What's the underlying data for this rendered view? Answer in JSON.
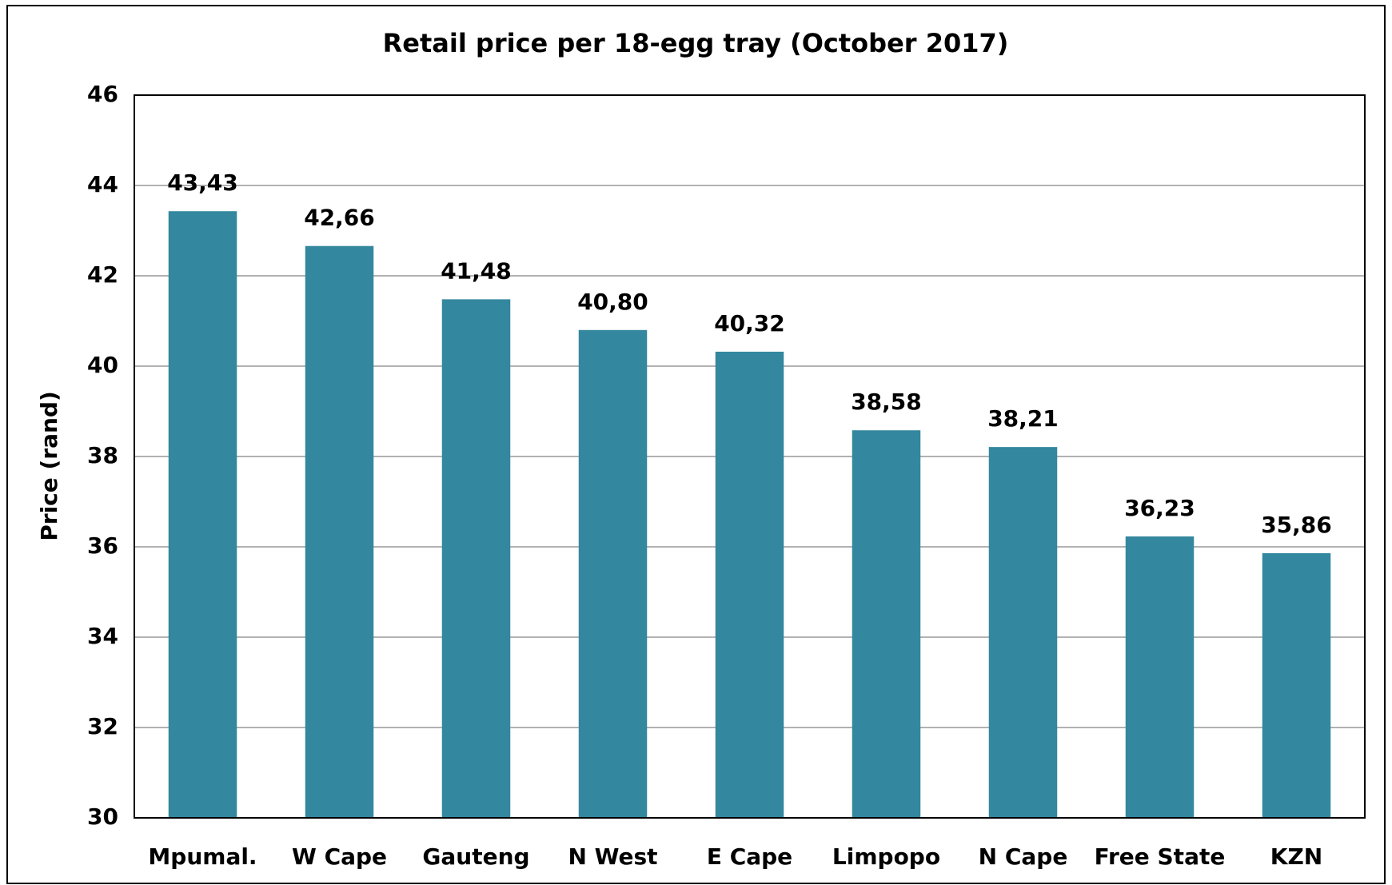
{
  "chart_data": {
    "type": "bar",
    "title": "Retail price per 18-egg tray (October 2017)",
    "y_label": "Price (rand)",
    "categories": [
      "Mpumal.",
      "W Cape",
      "Gauteng",
      "N West",
      "E Cape",
      "Limpopo",
      "N Cape",
      "Free State",
      "KZN"
    ],
    "values": [
      43.43,
      42.66,
      41.48,
      40.8,
      40.32,
      38.58,
      38.21,
      36.23,
      35.86
    ],
    "value_labels": [
      "43,43",
      "42,66",
      "41,48",
      "40,80",
      "40,32",
      "38,58",
      "38,21",
      "36,23",
      "35,86"
    ],
    "color": "#33879e",
    "ylim": [
      30,
      46
    ],
    "yticks": [
      30,
      32,
      34,
      36,
      38,
      40,
      42,
      44,
      46
    ],
    "grid": true
  }
}
